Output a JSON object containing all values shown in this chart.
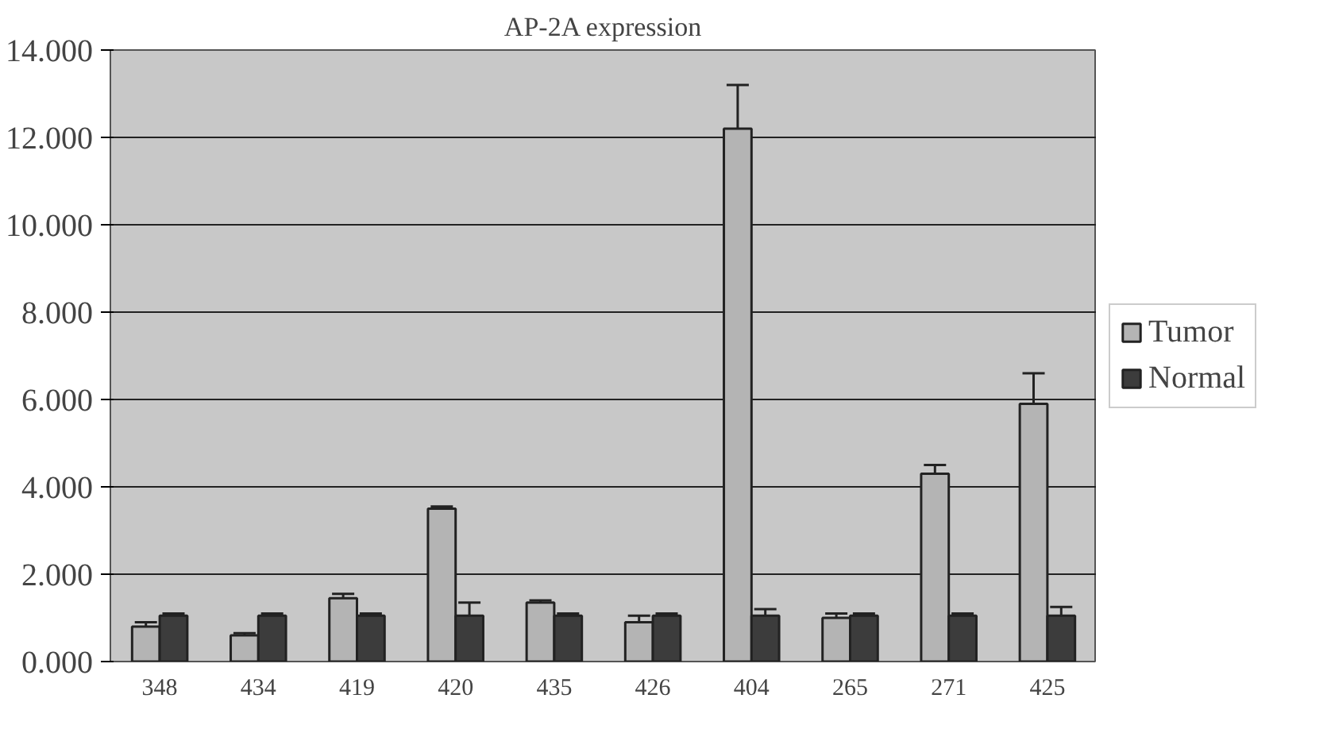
{
  "chart_data": {
    "type": "bar",
    "title": "AP-2A expression",
    "categories": [
      "348",
      "434",
      "419",
      "420",
      "435",
      "426",
      "404",
      "265",
      "271",
      "425"
    ],
    "series": [
      {
        "name": "Tumor",
        "color": "#b4b4b4",
        "values": [
          0.8,
          0.6,
          1.45,
          3.5,
          1.35,
          0.9,
          12.2,
          1.0,
          4.3,
          5.9
        ],
        "errors": [
          0.1,
          0.05,
          0.1,
          0.05,
          0.05,
          0.15,
          1.0,
          0.1,
          0.2,
          0.7
        ]
      },
      {
        "name": "Normal",
        "color": "#3c3c3c",
        "values": [
          1.05,
          1.05,
          1.05,
          1.05,
          1.05,
          1.05,
          1.05,
          1.05,
          1.05,
          1.05
        ],
        "errors": [
          0.05,
          0.05,
          0.05,
          0.3,
          0.05,
          0.05,
          0.15,
          0.05,
          0.05,
          0.2
        ]
      }
    ],
    "ylim": [
      0,
      14
    ],
    "yticks": [
      {
        "value": 0,
        "label": "0.000"
      },
      {
        "value": 2,
        "label": "2.000"
      },
      {
        "value": 4,
        "label": "4.000"
      },
      {
        "value": 6,
        "label": "6.000"
      },
      {
        "value": 8,
        "label": "8.000"
      },
      {
        "value": 10,
        "label": "10.000"
      },
      {
        "value": 12,
        "label": "12.000"
      },
      {
        "value": 14,
        "label": "14.000"
      }
    ],
    "grid": "y",
    "legend": "right"
  }
}
